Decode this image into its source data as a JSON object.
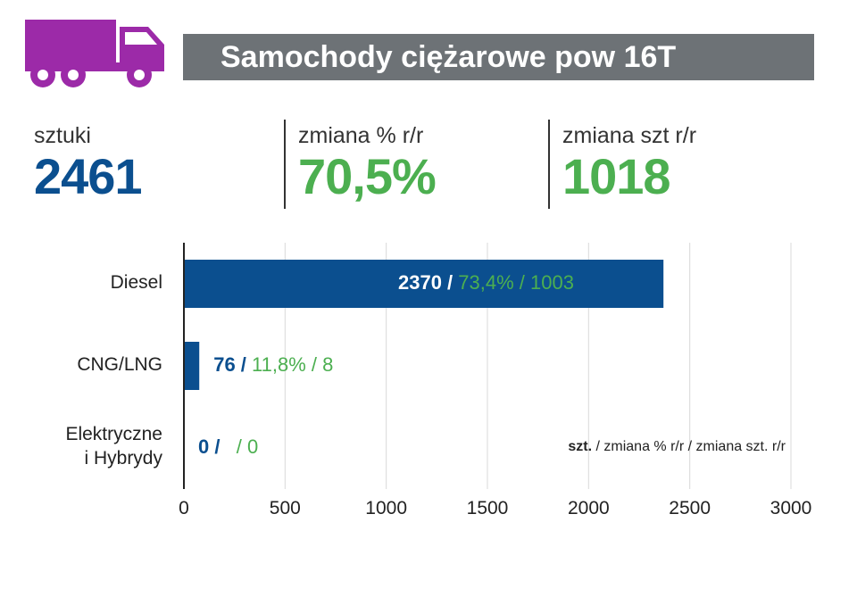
{
  "header": {
    "title": "Samochody ciężarowe pow 16T",
    "icon": "truck-icon",
    "icon_color": "#9c2aa8",
    "bar_color": "#6d7276"
  },
  "kpis": [
    {
      "label": "sztuki",
      "value": "2461",
      "color": "#0b4f8f"
    },
    {
      "label": "zmiana % r/r",
      "value": "70,5%",
      "color": "#4caf50"
    },
    {
      "label": "zmiana szt r/r",
      "value": "1018",
      "color": "#4caf50"
    }
  ],
  "chart_data": {
    "type": "bar",
    "orientation": "horizontal",
    "categories": [
      "Diesel",
      "CNG/LNG",
      "Elektryczne i Hybrydy"
    ],
    "category_lines": [
      [
        "Diesel"
      ],
      [
        "CNG/LNG"
      ],
      [
        "Elektryczne",
        "i Hybrydy"
      ]
    ],
    "values": [
      2370,
      76,
      0
    ],
    "bar_labels": [
      {
        "count": "2370 /",
        "rest": " 73,4% / 1003"
      },
      {
        "count": "76 /",
        "rest": " 11,8% / 8"
      },
      {
        "count": "0 /",
        "rest": "   / 0"
      }
    ],
    "xlim": [
      0,
      3000
    ],
    "xticks": [
      "0",
      "500",
      "1000",
      "1500",
      "2000",
      "2500",
      "3000"
    ],
    "grid": true,
    "legend": {
      "bold": "szt.",
      "rest": " / zmiana % r/r / zmiana szt. r/r"
    },
    "bar_color": "#0b4f8f",
    "count_color": "#0b4f8f",
    "change_color": "#4caf50"
  }
}
